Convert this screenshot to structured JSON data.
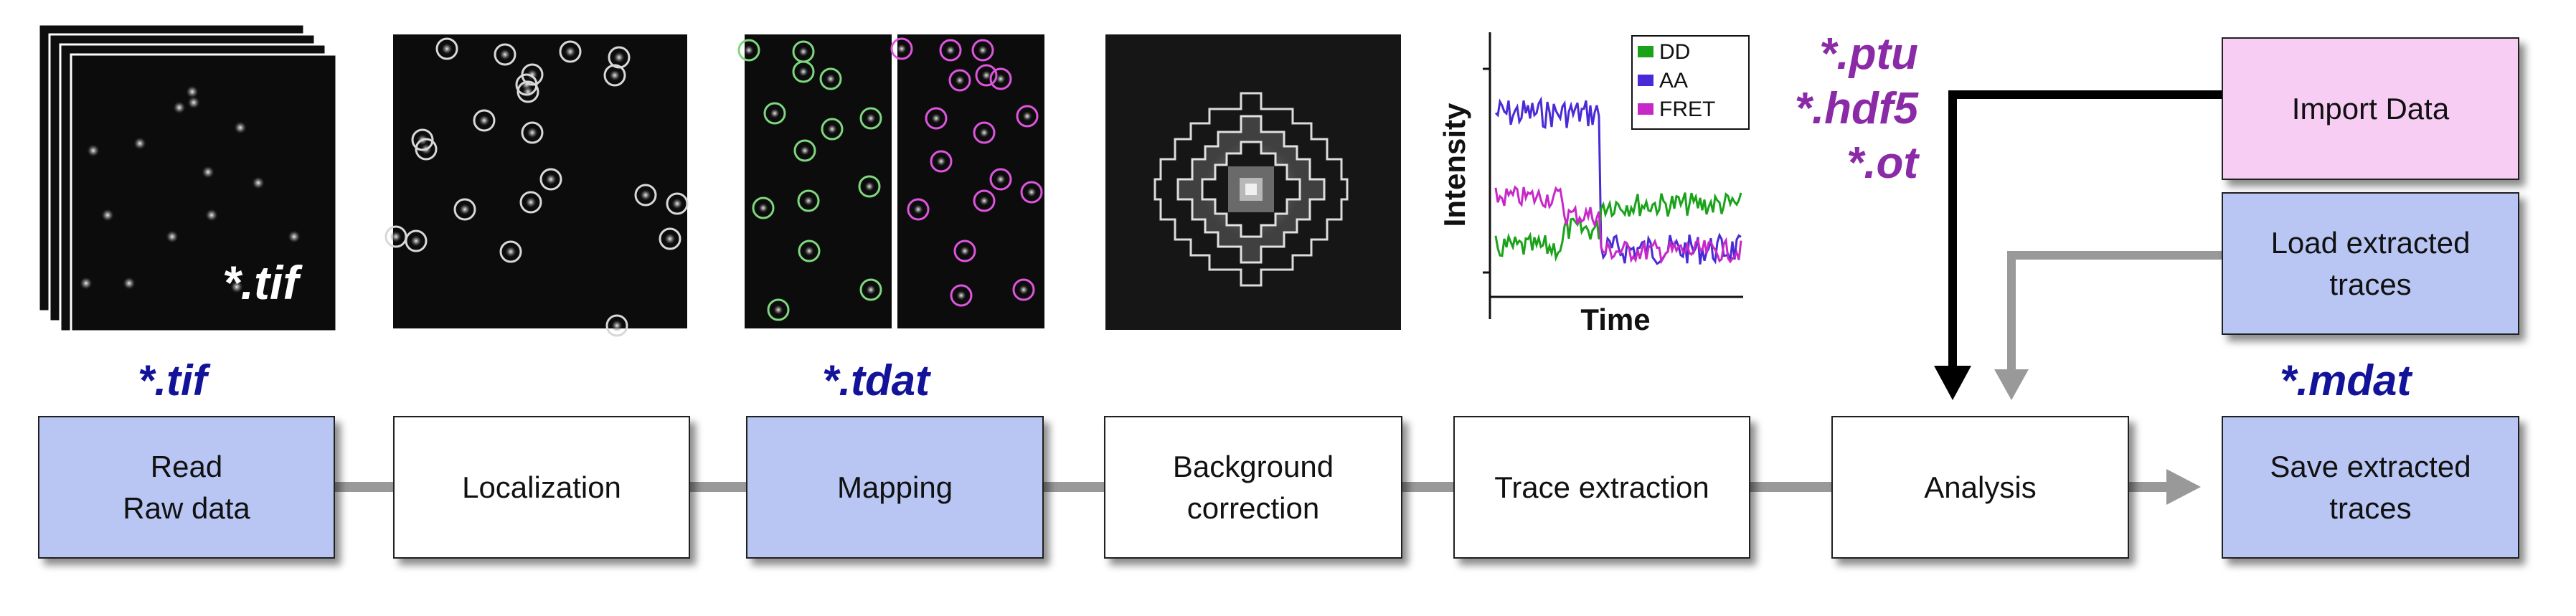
{
  "steps": [
    {
      "label": "Read\nRaw data"
    },
    {
      "label": "Localization"
    },
    {
      "label": "Mapping"
    },
    {
      "label": "Background\ncorrection"
    },
    {
      "label": "Trace extraction"
    },
    {
      "label": "Analysis"
    },
    {
      "label": "Save extracted\ntraces"
    }
  ],
  "import_data_label": "Import Data",
  "load_traces_label": "Load extracted\ntraces",
  "ext": {
    "tif_overlay": "*.tif",
    "tif": "*.tif",
    "tdat": "*.tdat",
    "mdat": "*.mdat",
    "ptu": "*.ptu",
    "hdf5": "*.hdf5",
    "ot": "*.ot"
  },
  "colors": {
    "step_blue": "#b9c6f4",
    "import_pink": "#f7cdf4",
    "connector_gray": "#999999",
    "ext_blue": "#13139a",
    "ext_purple": "#8a2aa6",
    "dd": "#1aa31a",
    "aa": "#4a2ad6",
    "fret": "#c728c7"
  },
  "chart_data": {
    "type": "line",
    "xlabel": "Time",
    "ylabel": "Intensity",
    "legend_position": "top-right",
    "series": [
      {
        "name": "DD",
        "color": "#1aa31a"
      },
      {
        "name": "AA",
        "color": "#4a2ad6"
      },
      {
        "name": "FRET",
        "color": "#c728c7"
      }
    ]
  }
}
